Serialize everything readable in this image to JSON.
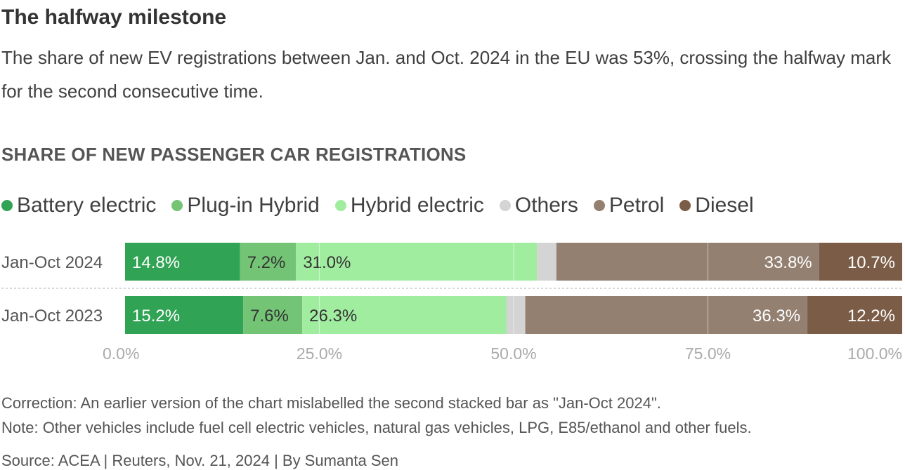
{
  "header": {
    "title": "The halfway milestone",
    "subtitle": "The share of new EV registrations between Jan. and Oct. 2024 in the EU was 53%, crossing the halfway mark for the second consecutive time."
  },
  "chart_label": "SHARE OF NEW PASSENGER CAR REGISTRATIONS",
  "colors": {
    "battery_electric": "#31a354",
    "plug_in_hybrid": "#74c476",
    "hybrid_electric": "#a1eda0",
    "others": "#d4d4d4",
    "petrol": "#938071",
    "diesel": "#7b5c47"
  },
  "chart_data": {
    "type": "bar",
    "orientation": "horizontal",
    "stacked": true,
    "categories": [
      "Jan-Oct 2024",
      "Jan-Oct 2023"
    ],
    "series": [
      {
        "name": "Battery electric",
        "values": [
          14.8,
          15.2
        ],
        "labels": [
          "14.8%",
          "15.2%"
        ],
        "color": "#31a354",
        "label_color": "#ffffff"
      },
      {
        "name": "Plug-in Hybrid",
        "values": [
          7.2,
          7.6
        ],
        "labels": [
          "7.2%",
          "7.6%"
        ],
        "color": "#74c476",
        "label_color": "#333333"
      },
      {
        "name": "Hybrid electric",
        "values": [
          31.0,
          26.3
        ],
        "labels": [
          "31.0%",
          "26.3%"
        ],
        "color": "#a1eda0",
        "label_color": "#333333"
      },
      {
        "name": "Others",
        "values": [
          2.5,
          2.4
        ],
        "labels": [
          "",
          ""
        ],
        "color": "#d4d4d4",
        "label_color": "#333333"
      },
      {
        "name": "Petrol",
        "values": [
          33.8,
          36.3
        ],
        "labels": [
          "33.8%",
          "36.3%"
        ],
        "color": "#938071",
        "label_color": "#ffffff"
      },
      {
        "name": "Diesel",
        "values": [
          10.7,
          12.2
        ],
        "labels": [
          "10.7%",
          "12.2%"
        ],
        "color": "#7b5c47",
        "label_color": "#ffffff"
      }
    ],
    "xlim": [
      0,
      100
    ],
    "xticks": [
      0,
      25,
      50,
      75,
      100
    ],
    "xtick_labels": [
      "0.0%",
      "25.0%",
      "50.0%",
      "75.0%",
      "100.0%"
    ],
    "grid": true,
    "legend_position": "top-left"
  },
  "footer": {
    "correction": "Correction: An earlier version of the chart mislabelled the second stacked bar as \"Jan-Oct 2024\".",
    "note": "Note: Other vehicles include fuel cell electric vehicles, natural gas vehicles, LPG, E85/ethanol and other fuels.",
    "source": "Source: ACEA | Reuters, Nov. 21, 2024 | By Sumanta Sen"
  }
}
